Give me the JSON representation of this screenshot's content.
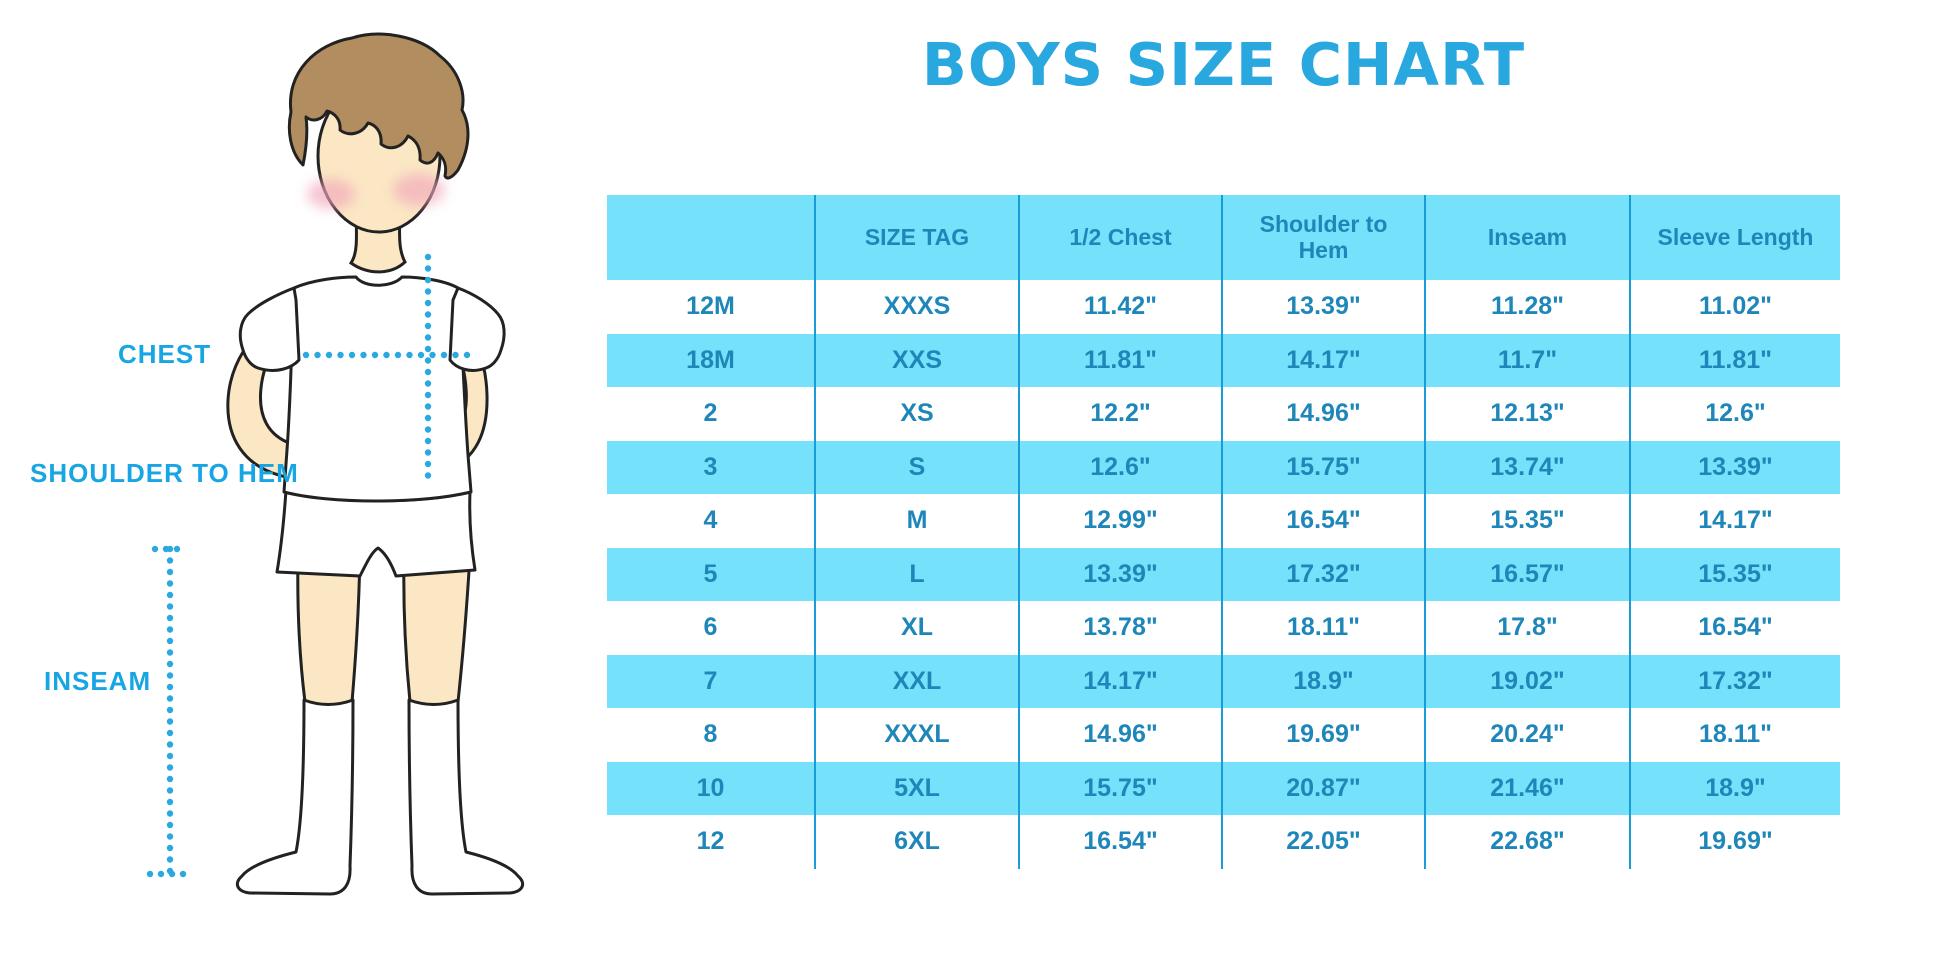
{
  "title": "BOYS SIZE CHART",
  "diagram": {
    "labels": {
      "chest": "CHEST",
      "shoulder_to_hem": "SHOULDER TO HEM",
      "inseam": "INSEAM"
    },
    "figure": "illustrated boy in white t-shirt, shorts and knee socks with dotted measurement guides"
  },
  "table": {
    "headers": [
      "",
      "SIZE TAG",
      "1/2 Chest",
      "Shoulder to Hem",
      "Inseam",
      "Sleeve Length"
    ],
    "rows": [
      [
        "12M",
        "XXXS",
        "11.42\"",
        "13.39\"",
        "11.28\"",
        "11.02\""
      ],
      [
        "18M",
        "XXS",
        "11.81\"",
        "14.17\"",
        "11.7\"",
        "11.81\""
      ],
      [
        "2",
        "XS",
        "12.2\"",
        "14.96\"",
        "12.13\"",
        "12.6\""
      ],
      [
        "3",
        "S",
        "12.6\"",
        "15.75\"",
        "13.74\"",
        "13.39\""
      ],
      [
        "4",
        "M",
        "12.99\"",
        "16.54\"",
        "15.35\"",
        "14.17\""
      ],
      [
        "5",
        "L",
        "13.39\"",
        "17.32\"",
        "16.57\"",
        "15.35\""
      ],
      [
        "6",
        "XL",
        "13.78\"",
        "18.11\"",
        "17.8\"",
        "16.54\""
      ],
      [
        "7",
        "XXL",
        "14.17\"",
        "18.9\"",
        "19.02\"",
        "17.32\""
      ],
      [
        "8",
        "XXXL",
        "14.96\"",
        "19.69\"",
        "20.24\"",
        "18.11\""
      ],
      [
        "10",
        "5XL",
        "15.75\"",
        "20.87\"",
        "21.46\"",
        "18.9\""
      ],
      [
        "12",
        "6XL",
        "16.54\"",
        "22.05\"",
        "22.68\"",
        "19.69\""
      ]
    ]
  },
  "colors": {
    "title_blue": "#29a7df",
    "table_text_blue": "#1e86b8",
    "row_band_cyan": "#76e1fa",
    "divider_blue": "#1a9cd8",
    "label_blue": "#17a6e3",
    "dotted_line_blue": "#2aa9e0",
    "skin": "#fbe7c4",
    "hair_brown": "#b18d60",
    "blush_pink": "#f1a7bc",
    "outline": "#222222"
  }
}
